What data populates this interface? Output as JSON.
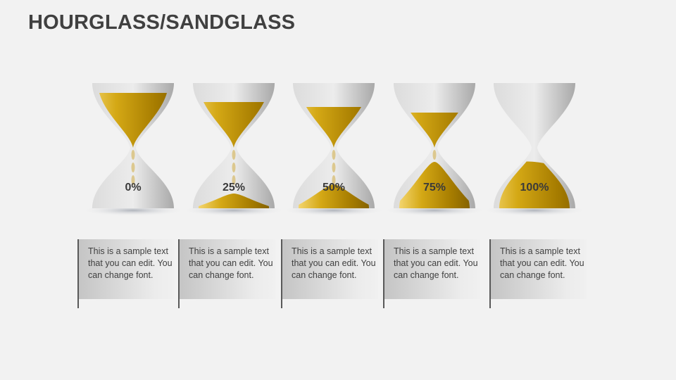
{
  "title": "HOURGLASS/SANDGLASS",
  "colors": {
    "sand_light": "#fde38a",
    "sand_dark": "#7a5a00",
    "glass_light": "#e8e8e8",
    "glass_dark": "#a8a8a8",
    "text": "#404040"
  },
  "items": [
    {
      "label": "0%",
      "percent": 0,
      "text": "This is a sample text that you can edit. You can change font."
    },
    {
      "label": "25%",
      "percent": 25,
      "text": "This is a sample text that you can edit. You can change font."
    },
    {
      "label": "50%",
      "percent": 50,
      "text": "This is a sample text that you can edit. You can change font."
    },
    {
      "label": "75%",
      "percent": 75,
      "text": "This is a sample text that you can edit. You can change font."
    },
    {
      "label": "100%",
      "percent": 100,
      "text": "This is a sample text that you can edit. You can change font."
    }
  ]
}
